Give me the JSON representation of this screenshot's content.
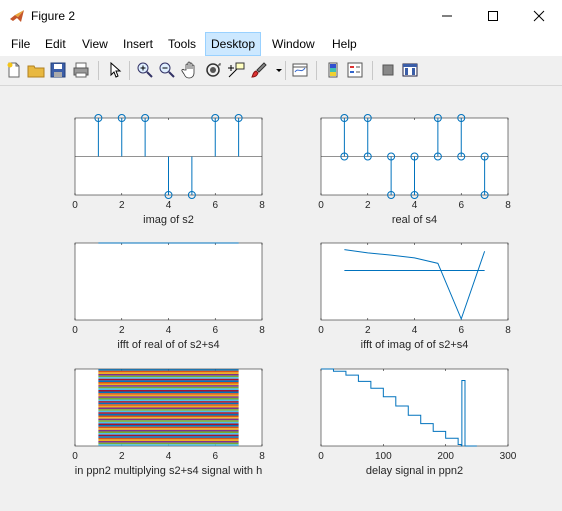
{
  "window": {
    "title": "Figure 2",
    "minimize": "—",
    "maximize": "☐",
    "close": "✕"
  },
  "menu": [
    "File",
    "Edit",
    "View",
    "Insert",
    "Tools",
    "Desktop",
    "Window",
    "Help"
  ],
  "menu_active": "Desktop",
  "toolbar_icons": [
    "new-figure-icon",
    "open-file-icon",
    "save-icon",
    "print-icon",
    "pointer-icon",
    "zoom-in-icon",
    "zoom-out-icon",
    "pan-icon",
    "rotate-icon",
    "data-cursor-icon",
    "brush-icon",
    "brush-dropdown-icon",
    "link-plot-icon",
    "colorbar-icon",
    "legend-icon",
    "hide-plot-tools-icon",
    "show-plot-tools-icon"
  ],
  "chart_data": [
    {
      "type": "stem",
      "xlabel": "imag of s2",
      "xticks": [
        "0",
        "2",
        "4",
        "6",
        "8"
      ],
      "xlim": [
        0,
        8
      ],
      "x": [
        1,
        2,
        3,
        4,
        5,
        6,
        7
      ],
      "values": [
        1,
        1,
        1,
        -1,
        -1,
        1,
        1
      ],
      "ylim": [
        -1,
        1
      ],
      "baseline": 0,
      "color": "#0072bd"
    },
    {
      "type": "stem",
      "xlabel": "real of s4",
      "xticks": [
        "0",
        "2",
        "4",
        "6",
        "8"
      ],
      "xlim": [
        0,
        8
      ],
      "x": [
        1,
        1,
        2,
        2,
        3,
        4,
        4,
        5,
        5,
        6,
        6,
        7
      ],
      "values": [
        1,
        0,
        1,
        0,
        -1,
        -1,
        0,
        1,
        0,
        1,
        0,
        -1
      ],
      "extra_x": [
        3,
        7
      ],
      "extra_values": [
        0,
        0
      ],
      "ylim": [
        -1,
        1
      ],
      "baseline": 0,
      "color": "#0072bd"
    },
    {
      "type": "line",
      "xlabel": "ifft of real of of s2+s4",
      "xticks": [
        "0",
        "2",
        "4",
        "6",
        "8"
      ],
      "xlim": [
        0,
        8
      ],
      "x": [
        1,
        7
      ],
      "values": [
        1,
        1
      ],
      "ylim": [
        0,
        1
      ],
      "color": "#0072bd"
    },
    {
      "type": "line",
      "xlabel": "ifft of imag of of s2+s4",
      "xticks": [
        "0",
        "2",
        "4",
        "6",
        "8"
      ],
      "xlim": [
        0,
        8
      ],
      "series": [
        {
          "x": [
            1,
            2,
            3,
            4,
            5,
            6,
            7
          ],
          "values": [
            0.58,
            0.52,
            0.48,
            0.43,
            0.33,
            -0.68,
            0.55
          ]
        },
        {
          "x": [
            1,
            7
          ],
          "values": [
            0.2,
            0.2
          ]
        }
      ],
      "ylim": [
        -0.7,
        0.7
      ],
      "color": "#0072bd"
    },
    {
      "type": "line",
      "xlabel": "in ppn2 multiplying s2+s4 signal with h",
      "xticks": [
        "0",
        "2",
        "4",
        "6",
        "8"
      ],
      "xlim": [
        0,
        8
      ],
      "x_range": [
        1,
        7
      ],
      "multi_series_count": 48,
      "colors": [
        "#0072bd",
        "#d95319",
        "#edb120",
        "#7e2f8e",
        "#77ac30",
        "#4dbeee",
        "#a2142f"
      ]
    },
    {
      "type": "line",
      "xlabel": "delay signal in ppn2",
      "xticks": [
        "0",
        "100",
        "200",
        "300"
      ],
      "xlim": [
        0,
        300
      ],
      "x": [
        0,
        20,
        40,
        60,
        80,
        100,
        120,
        140,
        160,
        180,
        200,
        220,
        225,
        226,
        230,
        231,
        235,
        240,
        250
      ],
      "values": [
        1,
        0.97,
        0.92,
        0.84,
        0.75,
        0.64,
        0.52,
        0.4,
        0.29,
        0.19,
        0.1,
        0.02,
        0.0,
        0.85,
        0.85,
        0.0,
        0.0,
        0.0,
        0.0
      ],
      "ylim": [
        0,
        1
      ],
      "color": "#0072bd"
    }
  ]
}
